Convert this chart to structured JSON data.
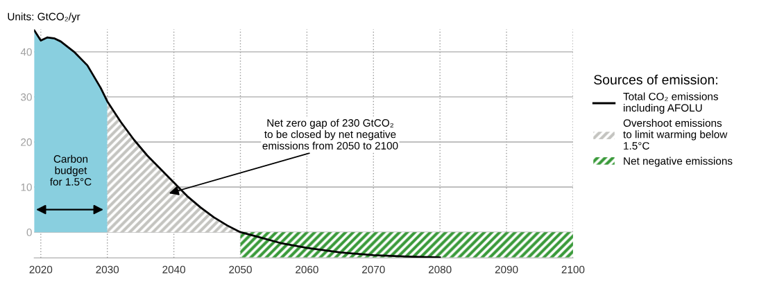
{
  "chart_data": {
    "type": "area",
    "ylabel": "Units: GtCO₂/yr",
    "legend_title": "Sources of emission:",
    "xlim": [
      2019,
      2100
    ],
    "xticks": [
      2020,
      2030,
      2040,
      2050,
      2060,
      2070,
      2080,
      2090,
      2100
    ],
    "ylim": [
      -5.7,
      45
    ],
    "yticks": [
      0,
      10,
      20,
      30,
      40
    ],
    "grid": true,
    "legend": "right",
    "series": [
      {
        "color": "#89cfdf",
        "x": [
          2019,
          2020,
          2021,
          2022,
          2023,
          2025,
          2027,
          2029,
          2030
        ],
        "values": [
          44.8,
          42.5,
          43.2,
          43,
          42.3,
          40,
          37,
          32,
          29
        ]
      },
      {
        "name": "Overshoot emissions\nto limit warming below\n1.5°C",
        "color": "#c4c4c0",
        "x": [
          2030,
          2032,
          2034,
          2036,
          2038,
          2040,
          2042,
          2044,
          2046,
          2048,
          2050
        ],
        "values": [
          29,
          24.5,
          20.5,
          17,
          14,
          11,
          8,
          5.5,
          3.3,
          1.5,
          0
        ]
      },
      {
        "name": "Net negative emissions",
        "color": "#3a9a3a",
        "x": [
          2050,
          2100
        ],
        "values": [
          -5.6,
          -5.6
        ]
      },
      {
        "type": "line",
        "name": "Total CO₂ emissions\nincluding AFOLU",
        "color": "#000000",
        "x": [
          2019,
          2020,
          2021,
          2022,
          2023,
          2025,
          2027,
          2029,
          2030,
          2032,
          2034,
          2036,
          2038,
          2040,
          2042,
          2044,
          2046,
          2048,
          2050,
          2053,
          2056,
          2060,
          2065,
          2070,
          2075,
          2080
        ],
        "values": [
          44.8,
          42.5,
          43.2,
          43,
          42.3,
          40,
          37,
          32,
          29,
          24.5,
          20.5,
          17,
          14,
          11,
          8,
          5.5,
          3.3,
          1.5,
          0,
          -1.2,
          -2.4,
          -3.5,
          -4.5,
          -5.1,
          -5.4,
          -5.6
        ]
      }
    ],
    "annotations": [
      "Carbon\nbudget\nfor 1.5°C",
      "Net zero gap of 230 GtCO₂\nto be closed by net negative\nemissions from 2050 to 2100"
    ]
  }
}
